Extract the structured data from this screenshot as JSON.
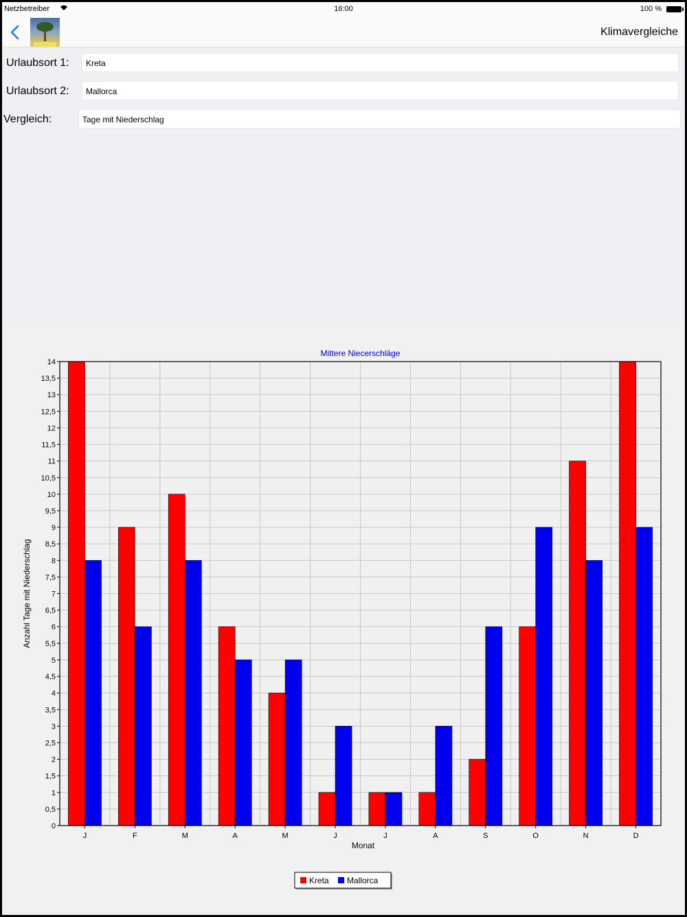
{
  "status": {
    "carrier": "Netzbetreiber",
    "time": "16:00",
    "battery": "100 %"
  },
  "nav": {
    "title": "Klimavergleiche"
  },
  "form": {
    "location1_label": "Urlaubsort 1:",
    "location1_value": "Kreta",
    "location2_label": "Urlaubsort 2:",
    "location2_value": "Mallorca",
    "comparison_label": "Vergleich:",
    "comparison_value": "Tage mit Niederschlag"
  },
  "colors": {
    "series1": "#ff0000",
    "series2": "#0000ee",
    "title": "#0000ee"
  },
  "chart_data": {
    "type": "bar",
    "title": "Mittere Niecerschläge",
    "xlabel": "Monat",
    "ylabel": "Anzahl Tage mit Niederschlag",
    "categories": [
      "J",
      "F",
      "M",
      "A",
      "M",
      "J",
      "J",
      "A",
      "S",
      "O",
      "N",
      "D"
    ],
    "ylim": [
      0,
      14
    ],
    "yticks": [
      "0",
      "0,5",
      "1",
      "1,5",
      "2",
      "2,5",
      "3",
      "3,5",
      "4",
      "4,5",
      "5",
      "5,5",
      "6",
      "6,5",
      "7",
      "7,5",
      "8",
      "8,5",
      "9",
      "9,5",
      "10",
      "10,5",
      "11",
      "11,5",
      "12",
      "12,5",
      "13",
      "13,5",
      "14"
    ],
    "grid": true,
    "legend_position": "bottom",
    "series": [
      {
        "name": "Kreta",
        "values": [
          14,
          9,
          10,
          6,
          4,
          1,
          1,
          1,
          2,
          6,
          11,
          14
        ]
      },
      {
        "name": "Mallorca",
        "values": [
          8,
          6,
          8,
          5,
          5,
          3,
          1,
          3,
          6,
          9,
          8,
          9
        ]
      }
    ]
  }
}
